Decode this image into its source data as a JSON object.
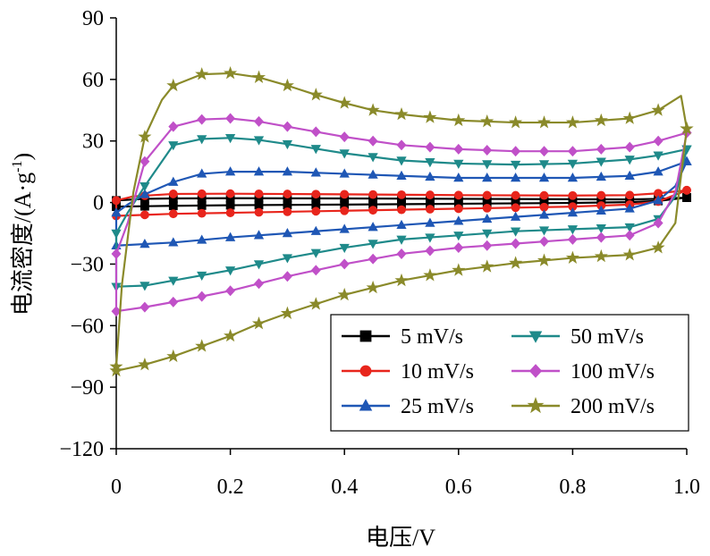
{
  "chart_data": {
    "type": "line",
    "xlabel": "电压/V",
    "ylabel": "电流密度/(A·g",
    "ylabel_sup": "-1",
    "ylabel_close": ")",
    "xlim": [
      0,
      1.0
    ],
    "ylim": [
      -120,
      90
    ],
    "x_ticks": [
      0,
      0.2,
      0.4,
      0.6,
      0.8,
      1.0
    ],
    "x_tick_labels": [
      "0",
      "0.2",
      "0.4",
      "0.6",
      "0.8",
      "1.0"
    ],
    "y_ticks": [
      -120,
      -90,
      -60,
      -30,
      0,
      30,
      60,
      90
    ],
    "y_tick_labels": [
      "−120",
      "−90",
      "−60",
      "−30",
      "0",
      "30",
      "60",
      "90"
    ],
    "grid": false,
    "legend_position": "bottom-right",
    "series": [
      {
        "name": "5 mV/s",
        "color": "#000000",
        "marker": "square",
        "upper": [
          [
            0,
            1.0
          ],
          [
            0.05,
            1.8
          ],
          [
            0.1,
            2.0
          ],
          [
            0.2,
            2.1
          ],
          [
            0.4,
            2.0
          ],
          [
            0.6,
            1.8
          ],
          [
            0.8,
            1.6
          ],
          [
            0.9,
            1.5
          ],
          [
            0.95,
            1.8
          ],
          [
            1.0,
            2.4
          ]
        ],
        "lower": [
          [
            0,
            -2.0
          ],
          [
            0.05,
            -1.8
          ],
          [
            0.1,
            -1.6
          ],
          [
            0.2,
            -1.3
          ],
          [
            0.4,
            -1.0
          ],
          [
            0.6,
            -0.6
          ],
          [
            0.8,
            -0.2
          ],
          [
            0.9,
            0.2
          ],
          [
            0.95,
            0.8
          ],
          [
            1.0,
            2.4
          ]
        ]
      },
      {
        "name": "10 mV/s",
        "color": "#e8251c",
        "marker": "circle",
        "upper": [
          [
            0,
            1.0
          ],
          [
            0.03,
            3.0
          ],
          [
            0.1,
            4.2
          ],
          [
            0.2,
            4.3
          ],
          [
            0.4,
            4.0
          ],
          [
            0.6,
            3.6
          ],
          [
            0.8,
            3.4
          ],
          [
            0.9,
            3.6
          ],
          [
            0.95,
            4.5
          ],
          [
            1.0,
            6.0
          ]
        ],
        "lower": [
          [
            0,
            -6.5
          ],
          [
            0.05,
            -6.0
          ],
          [
            0.1,
            -5.5
          ],
          [
            0.2,
            -5.0
          ],
          [
            0.4,
            -4.0
          ],
          [
            0.6,
            -3.0
          ],
          [
            0.8,
            -2.0
          ],
          [
            0.9,
            -1.0
          ],
          [
            0.95,
            0.5
          ],
          [
            1.0,
            6.0
          ]
        ]
      },
      {
        "name": "25 mV/s",
        "color": "#1f57b5",
        "marker": "triangle",
        "upper": [
          [
            0,
            -5
          ],
          [
            0.02,
            -1
          ],
          [
            0.05,
            4
          ],
          [
            0.1,
            10
          ],
          [
            0.15,
            14
          ],
          [
            0.2,
            15
          ],
          [
            0.3,
            15
          ],
          [
            0.4,
            14
          ],
          [
            0.5,
            13
          ],
          [
            0.6,
            12
          ],
          [
            0.7,
            12
          ],
          [
            0.8,
            12
          ],
          [
            0.9,
            13
          ],
          [
            0.95,
            15
          ],
          [
            1.0,
            20
          ]
        ],
        "lower": [
          [
            0,
            -21
          ],
          [
            0.1,
            -19.5
          ],
          [
            0.2,
            -17
          ],
          [
            0.3,
            -15
          ],
          [
            0.4,
            -13
          ],
          [
            0.5,
            -11
          ],
          [
            0.6,
            -9
          ],
          [
            0.7,
            -7
          ],
          [
            0.8,
            -5
          ],
          [
            0.9,
            -3
          ],
          [
            0.95,
            1
          ],
          [
            0.98,
            8
          ],
          [
            1.0,
            20
          ]
        ]
      },
      {
        "name": "50 mV/s",
        "color": "#1f8a8a",
        "marker": "triangle-down",
        "upper": [
          [
            0,
            -15
          ],
          [
            0.02,
            -5
          ],
          [
            0.05,
            8
          ],
          [
            0.1,
            28
          ],
          [
            0.15,
            31
          ],
          [
            0.2,
            31.5
          ],
          [
            0.25,
            30.5
          ],
          [
            0.3,
            28.5
          ],
          [
            0.4,
            24
          ],
          [
            0.5,
            20.5
          ],
          [
            0.6,
            19
          ],
          [
            0.7,
            18.5
          ],
          [
            0.8,
            19
          ],
          [
            0.9,
            21
          ],
          [
            0.95,
            23
          ],
          [
            1.0,
            26
          ]
        ],
        "lower": [
          [
            0,
            -41
          ],
          [
            0.05,
            -40.5
          ],
          [
            0.1,
            -38
          ],
          [
            0.2,
            -33
          ],
          [
            0.3,
            -27
          ],
          [
            0.4,
            -22
          ],
          [
            0.5,
            -18
          ],
          [
            0.6,
            -16
          ],
          [
            0.7,
            -14
          ],
          [
            0.8,
            -13
          ],
          [
            0.9,
            -12
          ],
          [
            0.95,
            -8
          ],
          [
            0.98,
            3
          ],
          [
            1.0,
            26
          ]
        ]
      },
      {
        "name": "100 mV/s",
        "color": "#c050c8",
        "marker": "diamond",
        "upper": [
          [
            0,
            -25
          ],
          [
            0.02,
            -10
          ],
          [
            0.05,
            20
          ],
          [
            0.1,
            37
          ],
          [
            0.15,
            40.5
          ],
          [
            0.2,
            41
          ],
          [
            0.25,
            39.5
          ],
          [
            0.3,
            37
          ],
          [
            0.4,
            32
          ],
          [
            0.5,
            28
          ],
          [
            0.6,
            26
          ],
          [
            0.7,
            25
          ],
          [
            0.8,
            25
          ],
          [
            0.9,
            27
          ],
          [
            0.95,
            30
          ],
          [
            1.0,
            34
          ]
        ],
        "lower": [
          [
            0,
            -53
          ],
          [
            0.05,
            -51
          ],
          [
            0.1,
            -48.5
          ],
          [
            0.2,
            -43
          ],
          [
            0.3,
            -36
          ],
          [
            0.4,
            -30
          ],
          [
            0.5,
            -25
          ],
          [
            0.6,
            -22
          ],
          [
            0.7,
            -20
          ],
          [
            0.8,
            -18
          ],
          [
            0.9,
            -16
          ],
          [
            0.95,
            -10
          ],
          [
            0.98,
            5
          ],
          [
            1.0,
            34
          ]
        ]
      },
      {
        "name": "200 mV/s",
        "color": "#8a8a2a",
        "marker": "star",
        "upper": [
          [
            0,
            -80
          ],
          [
            0.01,
            -40
          ],
          [
            0.03,
            5
          ],
          [
            0.05,
            32
          ],
          [
            0.08,
            50
          ],
          [
            0.1,
            57
          ],
          [
            0.15,
            62.5
          ],
          [
            0.2,
            63
          ],
          [
            0.25,
            61
          ],
          [
            0.3,
            57
          ],
          [
            0.35,
            52.5
          ],
          [
            0.4,
            48.5
          ],
          [
            0.45,
            45
          ],
          [
            0.5,
            43
          ],
          [
            0.6,
            40
          ],
          [
            0.7,
            39
          ],
          [
            0.8,
            39
          ],
          [
            0.9,
            41
          ],
          [
            0.95,
            45
          ],
          [
            0.99,
            52
          ],
          [
            1.0,
            36
          ]
        ],
        "lower": [
          [
            0,
            -82
          ],
          [
            0.05,
            -79
          ],
          [
            0.1,
            -75
          ],
          [
            0.15,
            -70
          ],
          [
            0.2,
            -65
          ],
          [
            0.25,
            -59
          ],
          [
            0.3,
            -54
          ],
          [
            0.4,
            -45
          ],
          [
            0.5,
            -38
          ],
          [
            0.6,
            -33
          ],
          [
            0.7,
            -29.5
          ],
          [
            0.8,
            -27
          ],
          [
            0.9,
            -25.5
          ],
          [
            0.95,
            -22
          ],
          [
            0.98,
            -10
          ],
          [
            1.0,
            36
          ]
        ]
      }
    ]
  }
}
